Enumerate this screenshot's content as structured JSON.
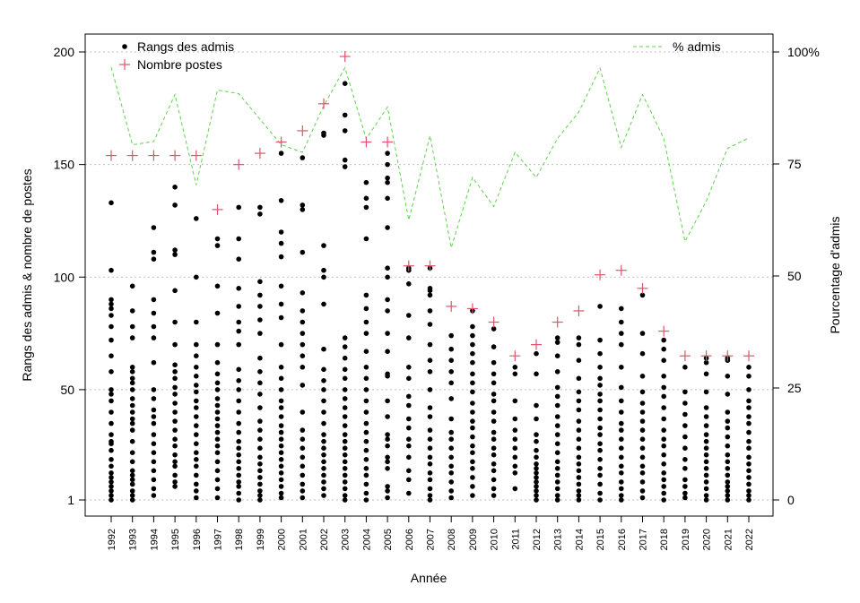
{
  "chart_data": {
    "type": "scatter",
    "xlabel": "Année",
    "ylabel_left": "Rangs des admis & nombre de postes",
    "ylabel_right": "Pourcentage d'admis",
    "y_left_ticks": [
      1,
      50,
      100,
      150,
      200
    ],
    "y_right_ticks": [
      "0",
      "25",
      "50",
      "75",
      "100%"
    ],
    "ylim_left": [
      1,
      200
    ],
    "ylim_right": [
      0,
      100
    ],
    "grid": "horizontal dotted",
    "colors": {
      "points": "#000000",
      "postes": "#df536b",
      "pct": "#61d04f",
      "grid": "#bebebe"
    },
    "legend_left": {
      "position": "top-left",
      "entries": [
        "Rangs des admis",
        "Nombre postes"
      ]
    },
    "legend_right": {
      "position": "top-right",
      "entries": [
        "% admis"
      ]
    },
    "years": [
      1992,
      1993,
      1994,
      1995,
      1996,
      1997,
      1998,
      1999,
      2000,
      2001,
      2002,
      2003,
      2004,
      2005,
      2006,
      2007,
      2008,
      2009,
      2010,
      2011,
      2012,
      2013,
      2014,
      2015,
      2016,
      2017,
      2018,
      2019,
      2020,
      2021,
      2022
    ],
    "postes": [
      154,
      154,
      154,
      154,
      154,
      130,
      150,
      155,
      160,
      165,
      177,
      198,
      160,
      160,
      105,
      105,
      87,
      86,
      80,
      65,
      70,
      80,
      85,
      101,
      103,
      95,
      76,
      65,
      65,
      65,
      65
    ],
    "pct_admis": [
      96.6,
      79.3,
      80.0,
      90.5,
      70.3,
      91.5,
      90.7,
      85.0,
      79.3,
      77.6,
      88.0,
      96.5,
      80.6,
      87.7,
      62.5,
      81.3,
      56.3,
      72.0,
      65.5,
      77.6,
      72.0,
      80.7,
      86.6,
      96.4,
      78.7,
      90.5,
      80.7,
      57.7,
      66.7,
      78.5,
      80.8
    ],
    "ranks": [
      [
        1,
        3,
        5,
        7,
        9,
        11,
        13,
        16,
        19,
        23,
        26,
        27,
        30,
        35,
        40,
        45,
        48,
        50,
        58,
        65,
        72,
        78,
        83,
        86,
        88,
        90,
        103,
        133
      ],
      [
        1,
        3,
        5,
        8,
        10,
        12,
        14,
        18,
        22,
        27,
        32,
        35,
        37,
        40,
        43,
        46,
        50,
        53,
        55,
        58,
        60,
        73,
        78,
        85,
        96
      ],
      [
        3,
        6,
        10,
        14,
        18,
        22,
        26,
        30,
        35,
        38,
        41,
        46,
        50,
        62,
        73,
        78,
        84,
        90,
        108,
        111,
        122
      ],
      [
        7,
        9,
        12,
        16,
        18,
        21,
        25,
        28,
        32,
        36,
        40,
        44,
        48,
        51,
        55,
        58,
        61,
        70,
        80,
        94,
        110,
        112,
        132,
        140
      ],
      [
        2,
        5,
        8,
        12,
        16,
        19,
        22,
        26,
        30,
        34,
        38,
        42,
        45,
        49,
        52,
        56,
        60,
        65,
        70,
        80,
        100,
        126
      ],
      [
        2,
        6,
        10,
        14,
        18,
        22,
        25,
        28,
        31,
        34,
        37,
        40,
        43,
        46,
        50,
        53,
        57,
        62,
        70,
        84,
        96,
        114,
        117
      ],
      [
        1,
        4,
        7,
        9,
        12,
        15,
        18,
        21,
        24,
        27,
        31,
        35,
        40,
        45,
        50,
        54,
        59,
        70,
        76,
        80,
        87,
        95,
        108,
        117,
        131
      ],
      [
        1,
        3,
        5,
        8,
        11,
        14,
        17,
        20,
        24,
        28,
        32,
        36,
        42,
        48,
        53,
        58,
        64,
        75,
        81,
        87,
        92,
        98,
        128,
        131
      ],
      [
        2,
        4,
        7,
        10,
        13,
        16,
        19,
        22,
        25,
        28,
        31,
        34,
        38,
        42,
        45,
        50,
        55,
        60,
        70,
        82,
        88,
        96,
        109,
        115,
        120,
        134,
        155
      ],
      [
        2,
        5,
        8,
        12,
        16,
        20,
        24,
        28,
        32,
        40,
        52,
        60,
        65,
        70,
        75,
        80,
        85,
        93,
        111,
        130,
        132,
        153
      ],
      [
        3,
        6,
        9,
        12,
        15,
        18,
        21,
        24,
        27,
        30,
        35,
        40,
        45,
        50,
        54,
        59,
        68,
        88,
        100,
        103,
        114,
        163,
        164
      ],
      [
        1,
        3,
        6,
        9,
        12,
        15,
        18,
        21,
        24,
        27,
        30,
        34,
        38,
        42,
        46,
        50,
        55,
        59,
        64,
        69,
        73,
        149,
        152,
        165,
        172,
        186
      ],
      [
        1,
        4,
        8,
        12,
        15,
        19,
        23,
        27,
        31,
        35,
        40,
        45,
        50,
        55,
        60,
        67,
        75,
        80,
        86,
        92,
        117,
        131,
        135,
        142
      ],
      [
        2,
        5,
        7,
        15,
        18,
        20,
        25,
        28,
        30,
        38,
        45,
        56,
        57,
        67,
        75,
        85,
        90,
        100,
        104,
        122,
        135,
        142,
        144,
        150,
        155
      ],
      [
        4,
        10,
        14,
        20,
        25,
        28,
        33,
        37,
        43,
        47,
        55,
        60,
        73,
        83,
        97,
        103,
        104
      ],
      [
        1,
        3,
        6,
        10,
        13,
        17,
        20,
        24,
        28,
        32,
        38,
        42,
        50,
        58,
        63,
        70,
        79,
        85,
        92,
        94,
        95,
        104
      ],
      [
        2,
        5,
        9,
        13,
        16,
        20,
        24,
        28,
        31,
        37,
        46,
        53,
        58,
        63,
        68,
        74
      ],
      [
        3,
        7,
        11,
        15,
        18,
        22,
        25,
        29,
        33,
        36,
        40,
        44,
        49,
        53,
        57,
        62,
        66,
        70,
        74,
        78,
        85
      ],
      [
        3,
        6,
        10,
        14,
        17,
        21,
        24,
        28,
        31,
        36,
        40,
        45,
        48,
        53,
        57,
        62,
        69,
        77
      ],
      [
        6,
        13,
        16,
        20,
        24,
        28,
        32,
        37,
        45,
        57,
        60
      ],
      [
        1,
        3,
        5,
        7,
        9,
        11,
        13,
        15,
        17,
        20,
        23,
        27,
        30,
        37,
        43,
        57,
        66
      ],
      [
        1,
        3,
        6,
        9,
        12,
        15,
        18,
        22,
        26,
        30,
        34,
        38,
        43,
        47,
        51,
        58,
        65,
        71,
        73
      ],
      [
        1,
        3,
        5,
        8,
        11,
        14,
        17,
        20,
        24,
        28,
        32,
        36,
        41,
        45,
        49,
        55,
        63,
        70,
        73
      ],
      [
        1,
        4,
        8,
        12,
        15,
        19,
        23,
        26,
        30,
        33,
        37,
        41,
        45,
        48,
        52,
        55,
        60,
        66,
        72,
        87
      ],
      [
        1,
        3,
        6,
        9,
        13,
        16,
        20,
        24,
        28,
        32,
        35,
        40,
        45,
        51,
        60,
        70,
        75,
        80,
        86
      ],
      [
        2,
        5,
        9,
        13,
        16,
        20,
        24,
        28,
        32,
        36,
        40,
        44,
        49,
        56,
        66,
        75,
        92
      ],
      [
        1,
        4,
        7,
        10,
        13,
        17,
        21,
        25,
        28,
        32,
        37,
        42,
        47,
        51,
        56,
        63,
        68,
        72
      ],
      [
        2,
        4,
        7,
        10,
        15,
        19,
        24,
        29,
        34,
        39,
        44,
        49,
        60
      ],
      [
        1,
        3,
        6,
        9,
        12,
        15,
        18,
        21,
        24,
        27,
        30,
        34,
        38,
        42,
        49,
        57,
        62,
        64
      ],
      [
        1,
        3,
        5,
        7,
        9,
        12,
        15,
        18,
        21,
        25,
        29,
        33,
        36,
        40,
        48,
        56,
        63,
        64
      ],
      [
        1,
        3,
        5,
        8,
        11,
        14,
        17,
        20,
        24,
        27,
        31,
        35,
        38,
        42,
        45,
        50,
        56,
        60
      ]
    ]
  }
}
